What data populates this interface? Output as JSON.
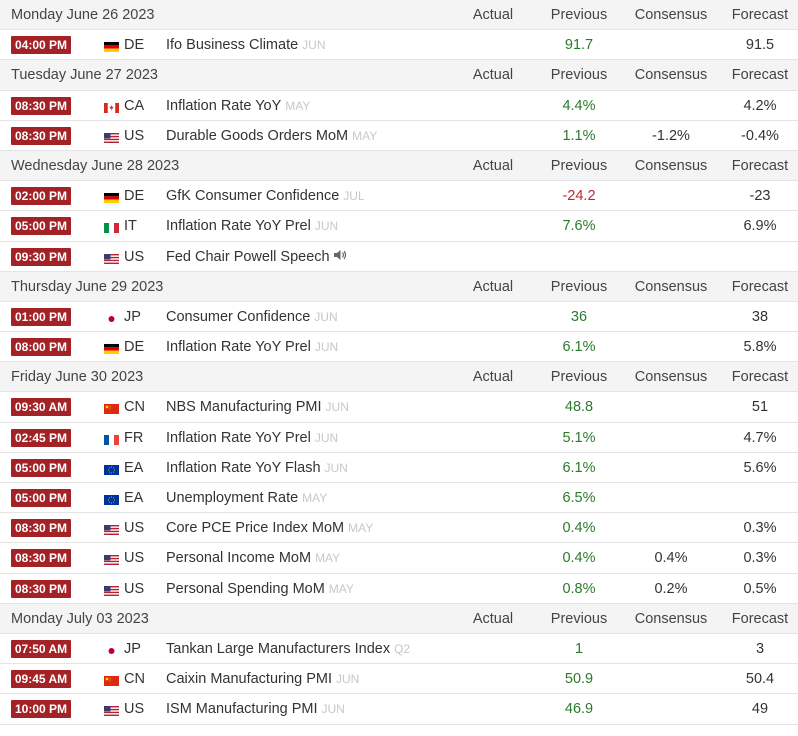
{
  "column_labels": {
    "actual": "Actual",
    "previous": "Previous",
    "consensus": "Consensus",
    "forecast": "Forecast"
  },
  "days": [
    {
      "date": "Monday June 26 2023",
      "events": [
        {
          "time": "04:00 PM",
          "country": "DE",
          "flag": "flag-germany",
          "name": "Ifo Business Climate",
          "ref": "JUN",
          "actual": "",
          "previous": "91.7",
          "prev_dir": "up",
          "consensus": "",
          "forecast": "91.5"
        }
      ]
    },
    {
      "date": "Tuesday June 27 2023",
      "events": [
        {
          "time": "08:30 PM",
          "country": "CA",
          "flag": "flag-canada",
          "name": "Inflation Rate YoY",
          "ref": "MAY",
          "actual": "",
          "previous": "4.4%",
          "prev_dir": "up",
          "consensus": "",
          "forecast": "4.2%"
        },
        {
          "time": "08:30 PM",
          "country": "US",
          "flag": "flag-usa",
          "name": "Durable Goods Orders MoM",
          "ref": "MAY",
          "actual": "",
          "previous": "1.1%",
          "prev_dir": "up",
          "consensus": "-1.2%",
          "forecast": "-0.4%"
        }
      ]
    },
    {
      "date": "Wednesday June 28 2023",
      "events": [
        {
          "time": "02:00 PM",
          "country": "DE",
          "flag": "flag-germany",
          "name": "GfK Consumer Confidence",
          "ref": "JUL",
          "actual": "",
          "previous": "-24.2",
          "prev_dir": "down",
          "consensus": "",
          "forecast": "-23"
        },
        {
          "time": "05:00 PM",
          "country": "IT",
          "flag": "flag-italy",
          "name": "Inflation Rate YoY Prel",
          "ref": "JUN",
          "actual": "",
          "previous": "7.6%",
          "prev_dir": "up",
          "consensus": "",
          "forecast": "6.9%"
        },
        {
          "time": "09:30 PM",
          "country": "US",
          "flag": "flag-usa",
          "name": "Fed Chair Powell Speech",
          "ref": "",
          "speaker": true,
          "actual": "",
          "previous": "",
          "prev_dir": "up",
          "consensus": "",
          "forecast": ""
        }
      ]
    },
    {
      "date": "Thursday June 29 2023",
      "events": [
        {
          "time": "01:00 PM",
          "country": "JP",
          "flag": "flag-japan",
          "name": "Consumer Confidence",
          "ref": "JUN",
          "actual": "",
          "previous": "36",
          "prev_dir": "up",
          "consensus": "",
          "forecast": "38"
        },
        {
          "time": "08:00 PM",
          "country": "DE",
          "flag": "flag-germany",
          "name": "Inflation Rate YoY Prel",
          "ref": "JUN",
          "actual": "",
          "previous": "6.1%",
          "prev_dir": "up",
          "consensus": "",
          "forecast": "5.8%"
        }
      ]
    },
    {
      "date": "Friday June 30 2023",
      "events": [
        {
          "time": "09:30 AM",
          "country": "CN",
          "flag": "flag-china",
          "name": "NBS Manufacturing PMI",
          "ref": "JUN",
          "actual": "",
          "previous": "48.8",
          "prev_dir": "up",
          "consensus": "",
          "forecast": "51"
        },
        {
          "time": "02:45 PM",
          "country": "FR",
          "flag": "flag-france",
          "name": "Inflation Rate YoY Prel",
          "ref": "JUN",
          "actual": "",
          "previous": "5.1%",
          "prev_dir": "up",
          "consensus": "",
          "forecast": "4.7%"
        },
        {
          "time": "05:00 PM",
          "country": "EA",
          "flag": "flag-eu",
          "name": "Inflation Rate YoY Flash",
          "ref": "JUN",
          "actual": "",
          "previous": "6.1%",
          "prev_dir": "up",
          "consensus": "",
          "forecast": "5.6%"
        },
        {
          "time": "05:00 PM",
          "country": "EA",
          "flag": "flag-eu",
          "name": "Unemployment Rate",
          "ref": "MAY",
          "actual": "",
          "previous": "6.5%",
          "prev_dir": "up",
          "consensus": "",
          "forecast": ""
        },
        {
          "time": "08:30 PM",
          "country": "US",
          "flag": "flag-usa",
          "name": "Core PCE Price Index MoM",
          "ref": "MAY",
          "actual": "",
          "previous": "0.4%",
          "prev_dir": "up",
          "consensus": "",
          "forecast": "0.3%"
        },
        {
          "time": "08:30 PM",
          "country": "US",
          "flag": "flag-usa",
          "name": "Personal Income MoM",
          "ref": "MAY",
          "actual": "",
          "previous": "0.4%",
          "prev_dir": "up",
          "consensus": "0.4%",
          "forecast": "0.3%"
        },
        {
          "time": "08:30 PM",
          "country": "US",
          "flag": "flag-usa",
          "name": "Personal Spending MoM",
          "ref": "MAY",
          "actual": "",
          "previous": "0.8%",
          "prev_dir": "up",
          "consensus": "0.2%",
          "forecast": "0.5%"
        }
      ]
    },
    {
      "date": "Monday July 03 2023",
      "events": [
        {
          "time": "07:50 AM",
          "country": "JP",
          "flag": "flag-japan",
          "name": "Tankan Large Manufacturers Index",
          "ref": "Q2",
          "actual": "",
          "previous": "1",
          "prev_dir": "up",
          "consensus": "",
          "forecast": "3"
        },
        {
          "time": "09:45 AM",
          "country": "CN",
          "flag": "flag-china",
          "name": "Caixin Manufacturing PMI",
          "ref": "JUN",
          "actual": "",
          "previous": "50.9",
          "prev_dir": "up",
          "consensus": "",
          "forecast": "50.4"
        },
        {
          "time": "10:00 PM",
          "country": "US",
          "flag": "flag-usa",
          "name": "ISM Manufacturing PMI",
          "ref": "JUN",
          "actual": "",
          "previous": "46.9",
          "prev_dir": "up",
          "consensus": "",
          "forecast": "49"
        }
      ]
    }
  ],
  "colors": {
    "time_badge": "#a32226",
    "positive": "#2b7a2b",
    "negative": "#c0282b",
    "header_bg": "#f4f4f4",
    "ref_text": "#c8c8c8"
  }
}
